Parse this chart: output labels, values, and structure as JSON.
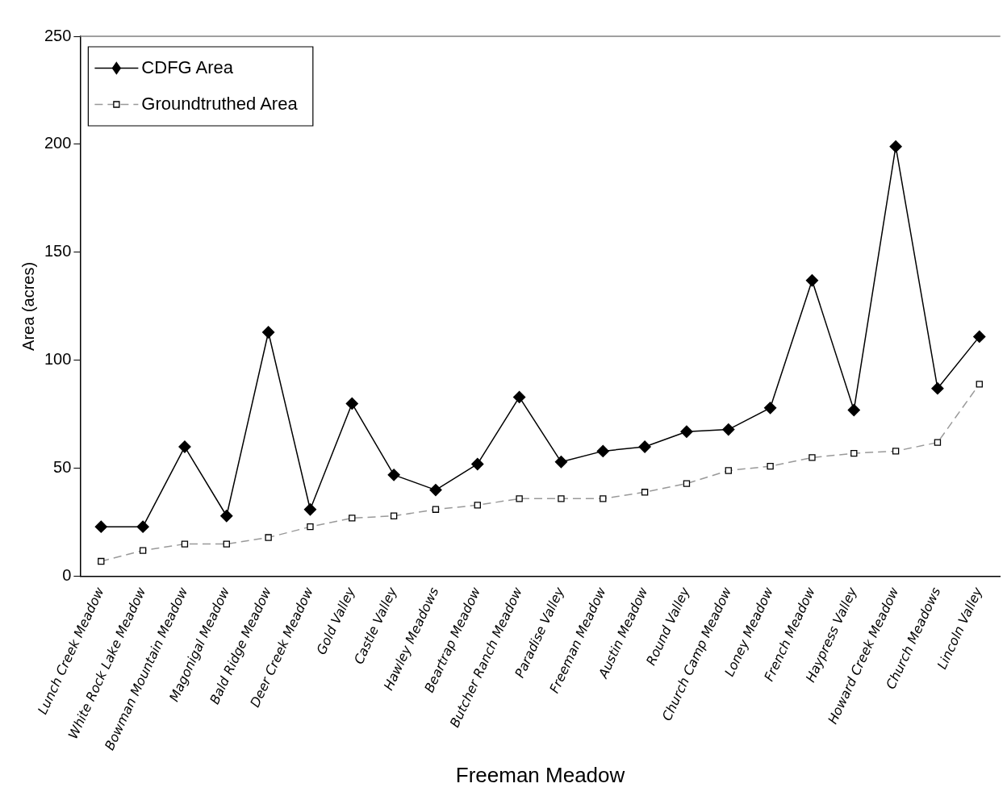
{
  "chart_data": {
    "type": "line",
    "xlabel": "Freeman Meadow",
    "ylabel": "Area (acres)",
    "categories": [
      "Lunch Creek Meadow",
      "White Rock Lake Meadow",
      "Bowman Mountain Meadow",
      "Magonigal Meadow",
      "Bald Ridge Meadow",
      "Deer Creek Meadow",
      "Gold Valley",
      "Castle Valley",
      "Hawley Meadows",
      "Beartrap Meadow",
      "Butcher Ranch Meadow",
      "Paradise Valley",
      "Freeman Meadow",
      "Austin Meadow",
      "Round Valley",
      "Church Camp Meadow",
      "Loney Meadow",
      "French Meadow",
      "Haypress Valley",
      "Howard Creek Meadow",
      "Church Meadows",
      "Lincoln Valley"
    ],
    "series": [
      {
        "name": "CDFG Area",
        "color": "#000000",
        "marker": "diamond",
        "line_style": "solid",
        "values": [
          23,
          23,
          60,
          28,
          113,
          31,
          80,
          47,
          40,
          52,
          83,
          53,
          58,
          60,
          67,
          68,
          78,
          137,
          77,
          199,
          87,
          111
        ]
      },
      {
        "name": "Groundtruthed Area",
        "color": "#999999",
        "marker": "square",
        "line_style": "dashed",
        "values": [
          7,
          12,
          15,
          15,
          18,
          23,
          27,
          28,
          31,
          33,
          36,
          36,
          36,
          39,
          43,
          49,
          51,
          55,
          57,
          58,
          62,
          89
        ]
      }
    ],
    "ylim": [
      0,
      250
    ],
    "yticks": [
      0,
      50,
      100,
      150,
      200,
      250
    ],
    "grid": false,
    "legend": "top left"
  }
}
